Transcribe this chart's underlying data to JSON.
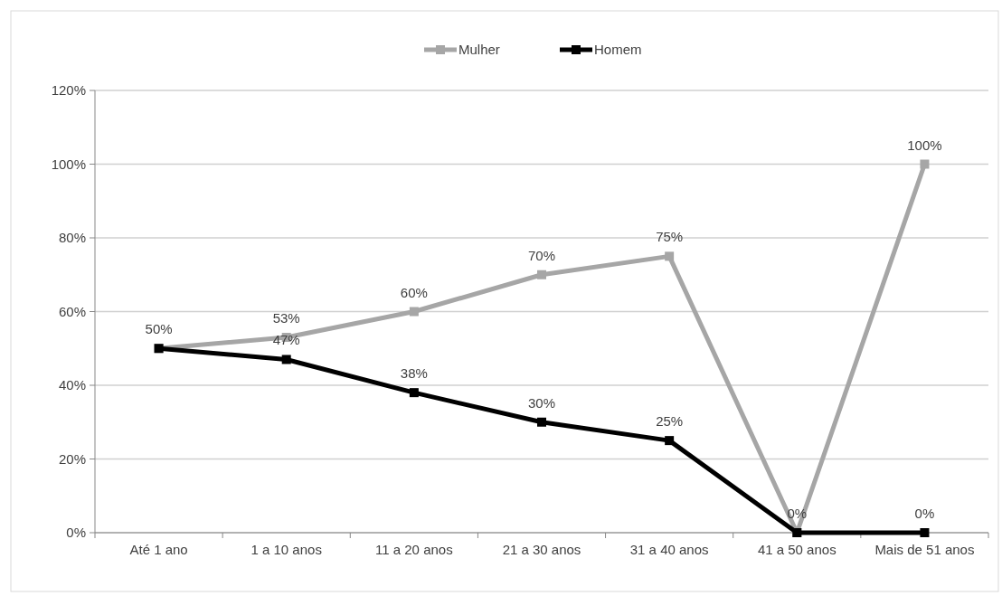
{
  "chart_data": {
    "type": "line",
    "categories": [
      "Até 1 ano",
      "1 a 10 anos",
      "11 a 20 anos",
      "21 a 30 anos",
      "31 a 40 anos",
      "41 a 50 anos",
      "Mais de 51 anos"
    ],
    "series": [
      {
        "name": "Mulher",
        "color": "#a6a6a6",
        "values": [
          50,
          53,
          60,
          70,
          75,
          0,
          100
        ],
        "value_labels": [
          "50%",
          "53%",
          "60%",
          "70%",
          "75%",
          "0%",
          "100%"
        ]
      },
      {
        "name": "Homem",
        "color": "#000000",
        "values": [
          50,
          47,
          38,
          30,
          25,
          0,
          0
        ],
        "value_labels": [
          null,
          "47%",
          "38%",
          "30%",
          "25%",
          null,
          "0%"
        ]
      }
    ],
    "ylim": [
      0,
      120
    ],
    "yticks": [
      {
        "value": 0,
        "label": "0%"
      },
      {
        "value": 20,
        "label": "20%"
      },
      {
        "value": 40,
        "label": "40%"
      },
      {
        "value": 60,
        "label": "60%"
      },
      {
        "value": 80,
        "label": "80%"
      },
      {
        "value": 100,
        "label": "100%"
      },
      {
        "value": 120,
        "label": "120%"
      }
    ],
    "grid": "y",
    "legend": "top",
    "marker": "square",
    "line_style": "solid"
  }
}
